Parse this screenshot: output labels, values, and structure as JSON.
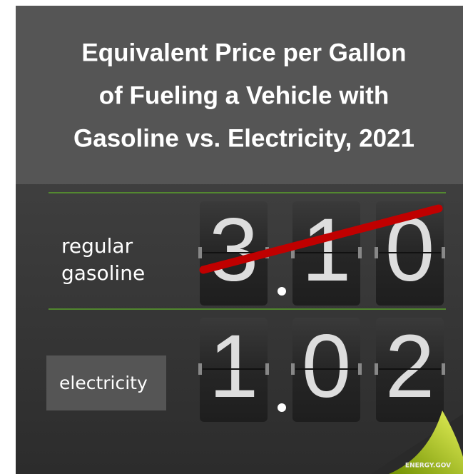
{
  "header": {
    "title_lines": [
      "Equivalent Price per Gallon",
      "of Fueling a Vehicle with",
      "Gasoline vs. Electricity, 2021"
    ]
  },
  "rows": [
    {
      "label_lines": [
        "regular",
        "gasoline"
      ],
      "digits": [
        "3",
        "1",
        "0"
      ]
    },
    {
      "label_lines": [
        "electricity"
      ],
      "digits": [
        "1",
        "0",
        "2"
      ]
    }
  ],
  "footer": {
    "brand": "ENERGY.GOV"
  }
}
